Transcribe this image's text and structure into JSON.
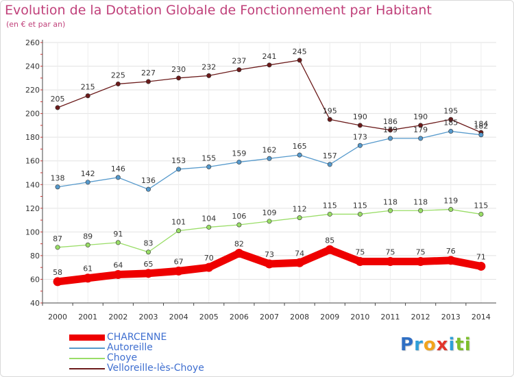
{
  "title": "Evolution de la Dotation Globale de Fonctionnement par Habitant",
  "subtitle": "(en € et par an)",
  "brand": {
    "letters": [
      {
        "ch": "P",
        "color": "#2f6fc4"
      },
      {
        "ch": "r",
        "color": "#2f9fd8"
      },
      {
        "ch": "o",
        "color": "#f2a41c"
      },
      {
        "ch": "x",
        "color": "#e2352b"
      },
      {
        "ch": "i",
        "color": "#2f9fd8"
      },
      {
        "ch": "t",
        "color": "#7dbf2c"
      },
      {
        "ch": "i",
        "color": "#7dbf2c"
      }
    ]
  },
  "chart_data": {
    "type": "line",
    "title": "Evolution de la Dotation Globale de Fonctionnement par Habitant",
    "subtitle": "(en € et par an)",
    "x": [
      "2000",
      "2001",
      "2002",
      "2003",
      "2004",
      "2005",
      "2006",
      "2007",
      "2008",
      "2009",
      "2010",
      "2011",
      "2012",
      "2013",
      "2014"
    ],
    "ylim": [
      40,
      260
    ],
    "yticks": [
      40,
      60,
      80,
      100,
      120,
      140,
      160,
      180,
      200,
      220,
      240,
      260
    ],
    "grid": true,
    "legend_position": "bottom-left",
    "series": [
      {
        "name": "CHARCENNE",
        "color": "#ee0000",
        "values": [
          58,
          61,
          64,
          65,
          67,
          70,
          82,
          73,
          74,
          85,
          75,
          75,
          75,
          76,
          71
        ]
      },
      {
        "name": "Autoreille",
        "color": "#5599cc",
        "values": [
          138,
          142,
          146,
          136,
          153,
          155,
          159,
          162,
          165,
          157,
          173,
          179,
          179,
          185,
          182
        ]
      },
      {
        "name": "Choye",
        "color": "#99dd66",
        "values": [
          87,
          89,
          91,
          83,
          101,
          104,
          106,
          109,
          112,
          115,
          115,
          118,
          118,
          119,
          115
        ]
      },
      {
        "name": "Velloreille-lès-Choye",
        "color": "#6b1a1a",
        "values": [
          205,
          215,
          225,
          227,
          230,
          232,
          237,
          241,
          245,
          195,
          190,
          186,
          190,
          195,
          184
        ]
      }
    ]
  }
}
